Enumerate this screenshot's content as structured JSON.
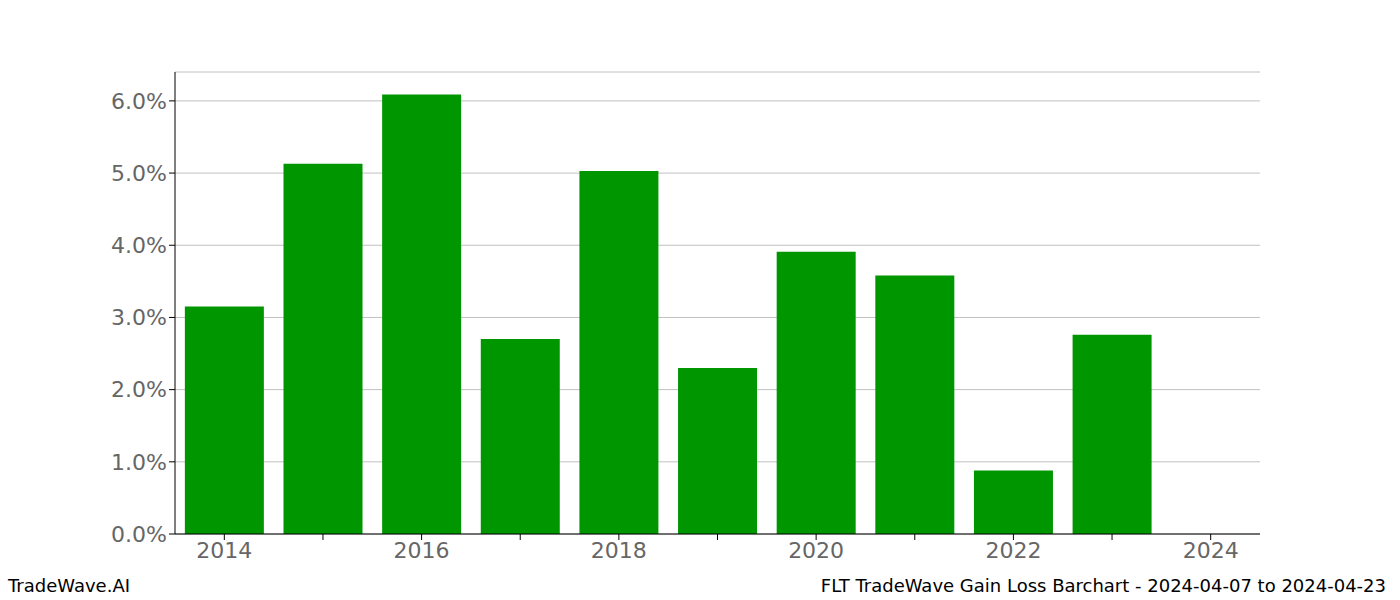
{
  "chart_data": {
    "type": "bar",
    "categories": [
      "2014",
      null,
      "2016",
      null,
      "2018",
      null,
      "2020",
      null,
      "2022",
      null,
      "2024"
    ],
    "values": [
      3.15,
      5.13,
      6.09,
      2.7,
      5.03,
      2.3,
      3.91,
      3.58,
      0.88,
      2.76,
      null
    ],
    "color": "#009600",
    "ylim": [
      0,
      6.4
    ],
    "yticks": [
      {
        "value": 0,
        "label": "0.0%"
      },
      {
        "value": 1,
        "label": "1.0%"
      },
      {
        "value": 2,
        "label": "2.0%"
      },
      {
        "value": 3,
        "label": "3.0%"
      },
      {
        "value": 4,
        "label": "4.0%"
      },
      {
        "value": 5,
        "label": "5.0%"
      },
      {
        "value": 6,
        "label": "6.0%"
      }
    ],
    "grid": true,
    "annotations": [
      "TradeWave.AI",
      "FLT TradeWave Gain Loss Barchart - 2024-04-07 to 2024-04-23"
    ]
  }
}
